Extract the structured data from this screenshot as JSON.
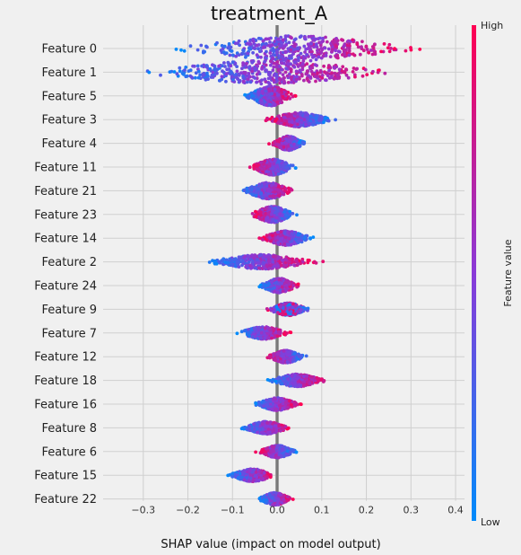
{
  "chart_data": {
    "type": "scatter",
    "subtype": "shap-beeswarm-summary",
    "title": "treatment_A",
    "xlabel": "SHAP value (impact on model output)",
    "xlim": [
      -0.39,
      0.42
    ],
    "xticks": [
      -0.3,
      -0.2,
      -0.1,
      0.0,
      0.1,
      0.2,
      0.3,
      0.4
    ],
    "xtick_labels": [
      "−0.3",
      "−0.2",
      "−0.1",
      "0.0",
      "0.1",
      "0.2",
      "0.3",
      "0.4"
    ],
    "grid": true,
    "zero_line": true,
    "colorbar": {
      "label": "Feature value",
      "high_label": "High",
      "low_label": "Low",
      "low_color": "#008bfb",
      "high_color": "#ff0052"
    },
    "features": [
      {
        "name": "Feature 0",
        "min": -0.28,
        "max": 0.37,
        "spread": 14,
        "colors": "low-left"
      },
      {
        "name": "Feature 1",
        "min": -0.36,
        "max": 0.32,
        "spread": 13,
        "colors": "low-left"
      },
      {
        "name": "Feature 5",
        "min": -0.08,
        "max": 0.05,
        "spread": 11,
        "colors": "low-left"
      },
      {
        "name": "Feature 3",
        "min": -0.04,
        "max": 0.14,
        "spread": 8,
        "colors": "high-left"
      },
      {
        "name": "Feature 4",
        "min": -0.02,
        "max": 0.07,
        "spread": 8,
        "colors": "high-left"
      },
      {
        "name": "Feature 11",
        "min": -0.07,
        "max": 0.05,
        "spread": 9,
        "colors": "high-left"
      },
      {
        "name": "Feature 21",
        "min": -0.09,
        "max": 0.05,
        "spread": 9,
        "colors": "low-left"
      },
      {
        "name": "Feature 23",
        "min": -0.07,
        "max": 0.05,
        "spread": 9,
        "colors": "high-left"
      },
      {
        "name": "Feature 14",
        "min": -0.05,
        "max": 0.09,
        "spread": 8,
        "colors": "high-left"
      },
      {
        "name": "Feature 2",
        "min": -0.18,
        "max": 0.11,
        "spread": 8,
        "colors": "low-left"
      },
      {
        "name": "Feature 24",
        "min": -0.05,
        "max": 0.06,
        "spread": 8,
        "colors": "low-left"
      },
      {
        "name": "Feature 9",
        "min": -0.03,
        "max": 0.08,
        "spread": 7,
        "colors": "mixed"
      },
      {
        "name": "Feature 7",
        "min": -0.1,
        "max": 0.04,
        "spread": 7,
        "colors": "low-left"
      },
      {
        "name": "Feature 12",
        "min": -0.03,
        "max": 0.07,
        "spread": 7,
        "colors": "high-left"
      },
      {
        "name": "Feature 18",
        "min": -0.03,
        "max": 0.12,
        "spread": 7,
        "colors": "low-left"
      },
      {
        "name": "Feature 16",
        "min": -0.06,
        "max": 0.06,
        "spread": 7,
        "colors": "low-left"
      },
      {
        "name": "Feature 8",
        "min": -0.09,
        "max": 0.04,
        "spread": 7,
        "colors": "low-left"
      },
      {
        "name": "Feature 6",
        "min": -0.05,
        "max": 0.05,
        "spread": 7,
        "colors": "high-left"
      },
      {
        "name": "Feature 15",
        "min": -0.12,
        "max": 0.01,
        "spread": 7,
        "colors": "low-left"
      },
      {
        "name": "Feature 22",
        "min": -0.05,
        "max": 0.04,
        "spread": 7,
        "colors": "low-left"
      }
    ]
  }
}
